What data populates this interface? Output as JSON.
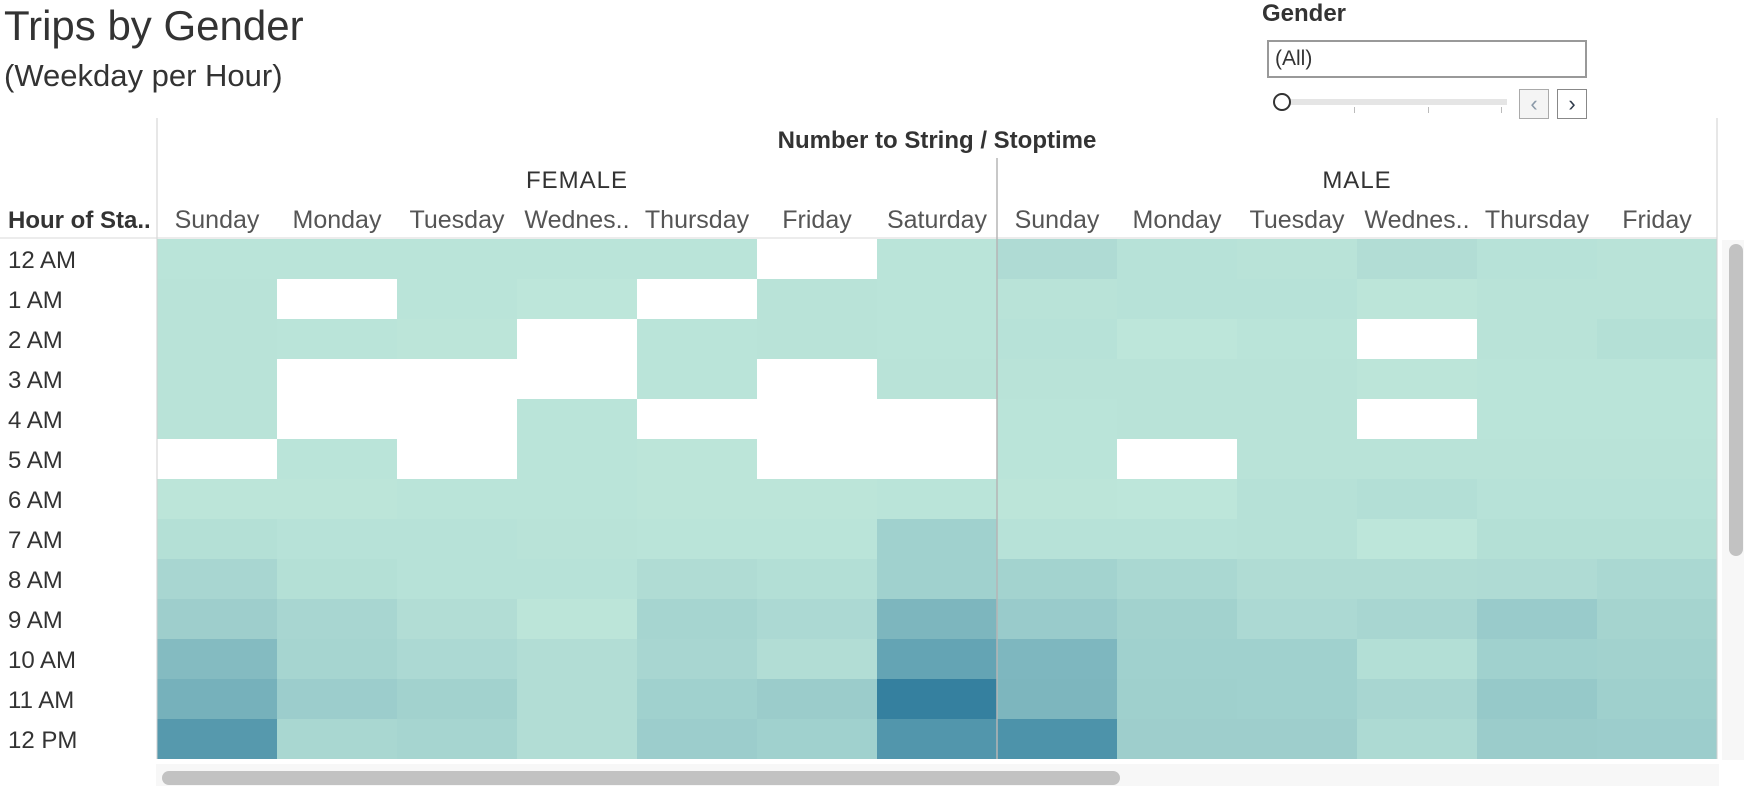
{
  "page": {
    "title": "Trips by Gender",
    "subtitle": "(Weekday per Hour)"
  },
  "filter": {
    "label": "Gender",
    "selected": "(All)",
    "prev_icon": "chevron-left-icon",
    "next_icon": "chevron-right-icon"
  },
  "chart_data": {
    "type": "heatmap",
    "column_header": "Number to String / Stoptime",
    "row_header": "Hour of Sta..",
    "groups": [
      {
        "name": "FEMALE",
        "days": [
          "Sunday",
          "Monday",
          "Tuesday",
          "Wednes..",
          "Thursday",
          "Friday",
          "Saturday"
        ]
      },
      {
        "name": "MALE",
        "days": [
          "Sunday",
          "Monday",
          "Tuesday",
          "Wednes..",
          "Thursday",
          "Friday"
        ]
      }
    ],
    "rows": [
      "12 AM",
      "1 AM",
      "2 AM",
      "3 AM",
      "4 AM",
      "5 AM",
      "6 AM",
      "7 AM",
      "8 AM",
      "9 AM",
      "10 AM",
      "11 AM",
      "12 PM"
    ],
    "value_scale": "relative trip intensity 0-1 (no legend shown); null = no data",
    "values": [
      [
        0.02,
        0.02,
        0.02,
        0.02,
        0.02,
        null,
        0.02,
        0.1,
        0.04,
        0.03,
        0.08,
        0.04,
        0.03
      ],
      [
        0.03,
        null,
        0.02,
        0.0,
        null,
        0.03,
        0.02,
        0.03,
        0.04,
        0.04,
        0.01,
        0.03,
        0.03
      ],
      [
        0.03,
        0.02,
        0.01,
        null,
        0.02,
        0.03,
        0.02,
        0.04,
        0.0,
        0.02,
        null,
        0.03,
        0.06
      ],
      [
        0.03,
        null,
        null,
        null,
        0.02,
        null,
        0.03,
        0.03,
        0.03,
        0.03,
        0.01,
        0.02,
        0.02
      ],
      [
        0.03,
        null,
        null,
        0.02,
        null,
        null,
        null,
        0.02,
        0.03,
        0.03,
        null,
        0.02,
        0.02
      ],
      [
        null,
        0.02,
        null,
        0.02,
        0.01,
        null,
        null,
        0.02,
        null,
        0.03,
        0.03,
        0.03,
        0.03
      ],
      [
        0.01,
        0.01,
        0.02,
        0.02,
        0.01,
        0.01,
        0.02,
        0.01,
        0.0,
        0.05,
        0.07,
        0.04,
        0.04
      ],
      [
        0.06,
        0.04,
        0.04,
        0.03,
        0.02,
        0.02,
        0.2,
        0.04,
        0.04,
        0.05,
        0.0,
        0.06,
        0.06
      ],
      [
        0.15,
        0.06,
        0.04,
        0.04,
        0.09,
        0.07,
        0.2,
        0.18,
        0.13,
        0.09,
        0.09,
        0.1,
        0.13
      ],
      [
        0.22,
        0.15,
        0.08,
        0.01,
        0.16,
        0.12,
        0.45,
        0.25,
        0.19,
        0.12,
        0.15,
        0.25,
        0.17
      ],
      [
        0.4,
        0.16,
        0.12,
        0.08,
        0.15,
        0.08,
        0.62,
        0.44,
        0.2,
        0.2,
        0.07,
        0.2,
        0.19
      ],
      [
        0.5,
        0.23,
        0.19,
        0.08,
        0.2,
        0.24,
        0.95,
        0.45,
        0.21,
        0.2,
        0.15,
        0.27,
        0.21
      ],
      [
        0.72,
        0.14,
        0.16,
        0.08,
        0.23,
        0.2,
        0.75,
        0.78,
        0.22,
        0.22,
        0.11,
        0.24,
        0.23
      ]
    ],
    "color_low": "#bde6da",
    "color_high": "#2e7b9c",
    "grid": false
  }
}
